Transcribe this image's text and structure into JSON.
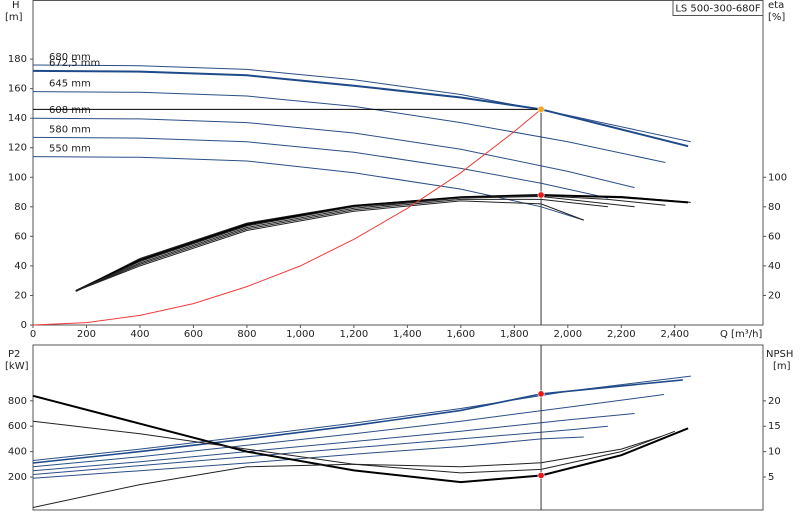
{
  "chart_data": [
    {
      "type": "line",
      "box_label": "LS 500-300-680F",
      "y_label": "H",
      "y_unit": "[m]",
      "y2_label": "eta",
      "y2_unit": "[%]",
      "x_label": "Q [m³/h]",
      "xlim": [
        0,
        2730
      ],
      "ylim": [
        0,
        220
      ],
      "y2lim": [
        0,
        220
      ],
      "xticks": [
        0,
        200,
        400,
        600,
        800,
        {
          "value": 1000,
          "label": "1,000"
        },
        {
          "value": 1200,
          "label": "1,200"
        },
        {
          "value": 1400,
          "label": "1,400"
        },
        {
          "value": 1600,
          "label": "1,600"
        },
        {
          "value": 1800,
          "label": "1,800"
        },
        {
          "value": 2000,
          "label": "2,000"
        },
        {
          "value": 2200,
          "label": "2,200"
        },
        {
          "value": 2400,
          "label": "2,400"
        }
      ],
      "yticks": [
        0,
        20,
        40,
        60,
        80,
        100,
        120,
        140,
        160,
        180
      ],
      "y2ticks": [
        20,
        40,
        60,
        80,
        100
      ],
      "series": [
        {
          "name": "680 mm",
          "color": "#2b4f86",
          "line_width": 1,
          "x": [
            0,
            400,
            800,
            1200,
            1600,
            2000,
            2460
          ],
          "values": [
            176,
            175.5,
            173,
            166,
            156,
            142,
            124
          ]
        },
        {
          "name": "672,5 mm",
          "color": "#1f4a8a",
          "line_width": 2,
          "x": [
            0,
            400,
            800,
            1200,
            1600,
            1900,
            2450
          ],
          "values": [
            172,
            171.5,
            169,
            162,
            154,
            146,
            121
          ]
        },
        {
          "name": "645 mm",
          "color": "#2b4f86",
          "line_width": 1,
          "x": [
            0,
            400,
            800,
            1200,
            1600,
            2000,
            2365
          ],
          "values": [
            158,
            157.5,
            155,
            148,
            137,
            124,
            110
          ]
        },
        {
          "name": "608 mm",
          "color": "#2b4f86",
          "line_width": 1,
          "x": [
            0,
            400,
            800,
            1200,
            1600,
            2000,
            2250
          ],
          "values": [
            140,
            139.5,
            137,
            130,
            119,
            104,
            93
          ]
        },
        {
          "name": "580 mm",
          "color": "#2b4f86",
          "line_width": 1,
          "x": [
            0,
            400,
            800,
            1200,
            1600,
            1900,
            2150
          ],
          "values": [
            127,
            126.5,
            124,
            117,
            106,
            96,
            86
          ]
        },
        {
          "name": "550 mm",
          "color": "#2b4f86",
          "line_width": 1,
          "x": [
            0,
            400,
            800,
            1200,
            1600,
            1900,
            2060
          ],
          "values": [
            114,
            113.5,
            111,
            103,
            92,
            80,
            71
          ]
        },
        {
          "color": "#222222",
          "line_width": 1,
          "axis": "y2",
          "x": [
            160,
            400,
            800,
            1200,
            1600,
            1900,
            2200,
            2460
          ],
          "values": [
            23,
            45,
            69,
            81,
            86.5,
            88,
            87,
            83
          ]
        },
        {
          "color": "#000000",
          "line_width": 2,
          "axis": "y2",
          "x": [
            160,
            400,
            800,
            1200,
            1600,
            1900,
            2200,
            2450
          ],
          "values": [
            23,
            44,
            68,
            80.5,
            86.5,
            88,
            86.5,
            83
          ]
        },
        {
          "color": "#222222",
          "line_width": 1,
          "axis": "y2",
          "x": [
            160,
            400,
            800,
            1200,
            1600,
            1900,
            2150,
            2365
          ],
          "values": [
            23,
            43,
            67,
            80,
            86,
            87.5,
            85,
            81
          ]
        },
        {
          "color": "#222222",
          "line_width": 1,
          "axis": "y2",
          "x": [
            160,
            400,
            800,
            1200,
            1600,
            1900,
            2250
          ],
          "values": [
            23,
            42,
            66,
            79,
            86,
            87,
            80
          ]
        },
        {
          "color": "#222222",
          "line_width": 1,
          "axis": "y2",
          "x": [
            160,
            400,
            800,
            1200,
            1600,
            1900,
            2150
          ],
          "values": [
            23,
            41,
            65,
            78,
            85,
            85,
            80
          ]
        },
        {
          "color": "#222222",
          "line_width": 1,
          "axis": "y2",
          "x": [
            160,
            400,
            800,
            1200,
            1600,
            1900,
            2060
          ],
          "values": [
            23,
            40,
            64,
            77,
            84,
            82,
            71
          ]
        },
        {
          "color": "#f03c3c",
          "line_width": 1,
          "x": [
            0,
            200,
            400,
            600,
            800,
            1000,
            1200,
            1400,
            1600,
            1800,
            1900
          ],
          "values": [
            0,
            1.6,
            6.5,
            14.5,
            26,
            40,
            58,
            79,
            103,
            131,
            146
          ]
        }
      ],
      "markers": [
        {
          "x": 1900,
          "y": 146,
          "color": "#f5a623"
        },
        {
          "x": 1900,
          "y": 88,
          "axis": "y2",
          "color": "#e8191a"
        }
      ]
    },
    {
      "type": "line",
      "y_label": "P2",
      "y_unit": "[kW]",
      "y2_label": "NPSH",
      "y2_unit": "[m]",
      "xlim": [
        0,
        2730
      ],
      "ylim": [
        -60,
        1240
      ],
      "y2lim": [
        -1.5,
        31
      ],
      "yticks": [
        200,
        400,
        600,
        800
      ],
      "y2ticks": [
        5,
        10,
        15,
        20
      ],
      "series": [
        {
          "color": "#2b4f86",
          "line_width": 1,
          "x": [
            0,
            400,
            800,
            1200,
            1600,
            2000,
            2460
          ],
          "values": [
            330,
            420,
            520,
            625,
            740,
            875,
            995
          ]
        },
        {
          "color": "#1f4a8a",
          "line_width": 1.6,
          "x": [
            0,
            400,
            800,
            1200,
            1600,
            1900,
            2430
          ],
          "values": [
            310,
            400,
            500,
            605,
            725,
            855,
            965
          ]
        },
        {
          "color": "#2b4f86",
          "line_width": 1,
          "x": [
            0,
            400,
            800,
            1200,
            1600,
            2000,
            2360
          ],
          "values": [
            280,
            360,
            450,
            540,
            640,
            750,
            850
          ]
        },
        {
          "color": "#2b4f86",
          "line_width": 1,
          "x": [
            0,
            400,
            800,
            1200,
            1600,
            2000,
            2250
          ],
          "values": [
            250,
            320,
            400,
            480,
            560,
            650,
            700
          ]
        },
        {
          "color": "#2b4f86",
          "line_width": 1,
          "x": [
            0,
            400,
            800,
            1200,
            1600,
            2000,
            2150
          ],
          "values": [
            220,
            290,
            360,
            430,
            500,
            570,
            600
          ]
        },
        {
          "color": "#2b4f86",
          "line_width": 1,
          "x": [
            0,
            400,
            800,
            1200,
            1600,
            1900,
            2060
          ],
          "values": [
            190,
            250,
            310,
            380,
            440,
            500,
            515
          ]
        },
        {
          "color": "#000000",
          "line_width": 2,
          "axis": "y2",
          "x": [
            0,
            400,
            800,
            1200,
            1600,
            1900,
            2200,
            2450
          ],
          "values": [
            21,
            15.5,
            10,
            6.3,
            4,
            5.3,
            9.3,
            14.6
          ]
        },
        {
          "color": "#222222",
          "line_width": 1,
          "axis": "y2",
          "x": [
            0,
            400,
            800,
            1200,
            1600,
            1900,
            2200,
            2400
          ],
          "values": [
            16,
            13.5,
            10.5,
            7.5,
            5.8,
            6.5,
            10,
            14
          ]
        },
        {
          "color": "#222222",
          "line_width": 1,
          "axis": "y2",
          "x": [
            0,
            400,
            800,
            1200,
            1600,
            1900,
            2200,
            2350
          ],
          "values": [
            -1,
            3.5,
            7,
            7.5,
            7,
            7.8,
            10.5,
            13
          ]
        }
      ],
      "markers": [
        {
          "x": 1900,
          "y": 855,
          "color": "#e8191a"
        },
        {
          "x": 1900,
          "y": 5.3,
          "axis": "y2",
          "color": "#e8191a"
        }
      ]
    }
  ]
}
